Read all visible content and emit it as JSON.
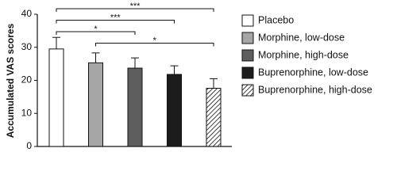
{
  "chart_data": {
    "type": "bar",
    "y_label": "Accumulated VAS scores",
    "categories": [
      "Placebo",
      "Morphine, low-dose",
      "Morphine, high-dose",
      "Buprenorphine, low-dose",
      "Buprenorphine, high-dose"
    ],
    "values": [
      29.5,
      25.3,
      23.7,
      21.8,
      17.6
    ],
    "errors": [
      3.5,
      3.0,
      3.1,
      2.6,
      2.9
    ],
    "colors": [
      "#ffffff",
      "#a6a6a6",
      "#5e5e5e",
      "#1c1c1c",
      "#ffffff"
    ],
    "hatch": [
      false,
      false,
      false,
      false,
      true
    ],
    "ylim": [
      0,
      40
    ],
    "yticks": [
      0,
      10,
      20,
      30,
      40
    ],
    "annotations": [
      {
        "text": "***",
        "from": "Placebo",
        "to": "Buprenorphine, high-dose"
      },
      {
        "text": "***",
        "from": "Placebo",
        "to": "Buprenorphine, low-dose"
      },
      {
        "text": "*",
        "from": "Placebo",
        "to": "Morphine, high-dose"
      },
      {
        "text": "*",
        "from": "Morphine, low-dose",
        "to": "Buprenorphine, high-dose"
      }
    ],
    "legend": "right"
  }
}
